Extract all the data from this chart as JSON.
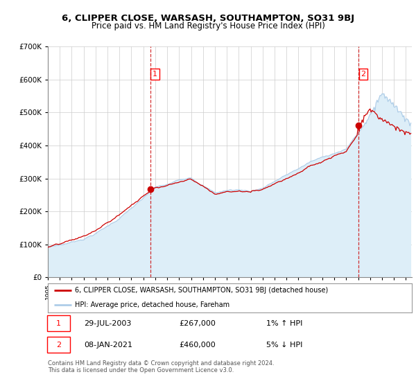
{
  "title": "6, CLIPPER CLOSE, WARSASH, SOUTHAMPTON, SO31 9BJ",
  "subtitle": "Price paid vs. HM Land Registry's House Price Index (HPI)",
  "legend_line1": "6, CLIPPER CLOSE, WARSASH, SOUTHAMPTON, SO31 9BJ (detached house)",
  "legend_line2": "HPI: Average price, detached house, Fareham",
  "sale1_label": "1",
  "sale1_date": "29-JUL-2003",
  "sale1_price": "£267,000",
  "sale1_hpi": "1% ↑ HPI",
  "sale1_year": 2003.58,
  "sale1_value": 267000,
  "sale2_label": "2",
  "sale2_date": "08-JAN-2021",
  "sale2_price": "£460,000",
  "sale2_hpi": "5% ↓ HPI",
  "sale2_year": 2021.03,
  "sale2_value": 460000,
  "hpi_color": "#aecde8",
  "hpi_fill_color": "#ddeef8",
  "price_color": "#cc0000",
  "marker_color": "#cc0000",
  "sale_line_color": "#cc0000",
  "background_color": "#ffffff",
  "grid_color": "#cccccc",
  "ylim_min": 0,
  "ylim_max": 700000,
  "ytick_step": 100000,
  "xmin": 1995.0,
  "xmax": 2025.5,
  "footer": "Contains HM Land Registry data © Crown copyright and database right 2024.\nThis data is licensed under the Open Government Licence v3.0."
}
